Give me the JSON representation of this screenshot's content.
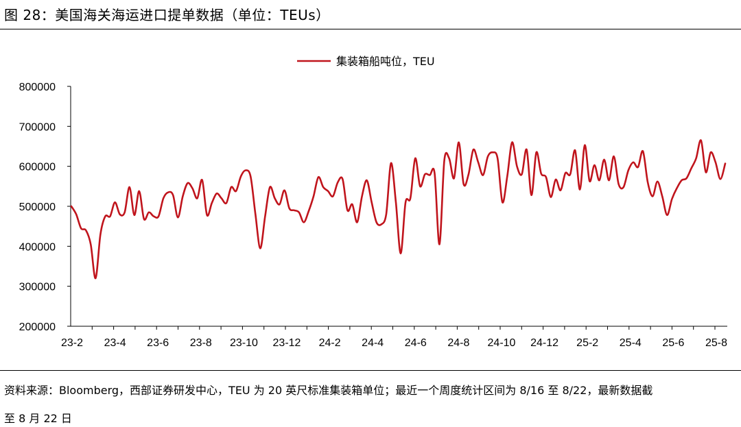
{
  "figure": {
    "title": "图 28：美国海关海运进口提单数据（单位：TEUs）",
    "source_line1": "资料来源：Bloomberg，西部证券研发中心，TEU 为 20 英尺标准集装箱单位；最近一个周度统计区间为 8/16 至 8/22，最新数据截",
    "source_line2": "至 8 月 22 日"
  },
  "colors": {
    "series": "#c0141c",
    "axis": "#000000"
  },
  "chart_data": {
    "type": "line",
    "legend": {
      "label": "集装箱船吨位，TEU",
      "placement": "top-center"
    },
    "ylim": [
      200000,
      800000
    ],
    "yticks": [
      "200000",
      "300000",
      "400000",
      "500000",
      "600000",
      "700000",
      "800000"
    ],
    "xticks": [
      "23-2",
      "23-4",
      "23-6",
      "23-8",
      "23-10",
      "23-12",
      "24-2",
      "24-4",
      "24-6",
      "24-8",
      "24-10",
      "24-12",
      "25-2",
      "25-4",
      "25-6",
      "25-8"
    ],
    "grid": false,
    "series": [
      {
        "name": "集装箱船吨位，TEU",
        "values": [
          500000,
          480000,
          445000,
          440000,
          405000,
          320000,
          430000,
          475000,
          475000,
          510000,
          480000,
          485000,
          548000,
          478000,
          538000,
          468000,
          485000,
          475000,
          475000,
          520000,
          535000,
          528000,
          472000,
          525000,
          558000,
          545000,
          520000,
          566000,
          478000,
          508000,
          532000,
          520000,
          508000,
          548000,
          538000,
          575000,
          590000,
          575000,
          480000,
          395000,
          475000,
          548000,
          520000,
          505000,
          540000,
          495000,
          490000,
          485000,
          460000,
          488000,
          525000,
          573000,
          548000,
          538000,
          525000,
          560000,
          568000,
          490000,
          505000,
          460000,
          525000,
          565000,
          510000,
          460000,
          455000,
          480000,
          608000,
          510000,
          382000,
          510000,
          520000,
          620000,
          550000,
          580000,
          578000,
          583000,
          405000,
          615000,
          620000,
          570000,
          660000,
          555000,
          580000,
          642000,
          610000,
          578000,
          625000,
          635000,
          620000,
          510000,
          575000,
          660000,
          600000,
          580000,
          642000,
          528000,
          635000,
          582000,
          573000,
          523000,
          567000,
          540000,
          583000,
          580000,
          640000,
          542000,
          653000,
          563000,
          603000,
          565000,
          617000,
          565000,
          625000,
          555000,
          548000,
          590000,
          610000,
          598000,
          638000,
          560000,
          525000,
          562000,
          525000,
          478000,
          518000,
          545000,
          565000,
          570000,
          595000,
          620000,
          665000,
          585000,
          635000,
          610000,
          568000,
          607000
        ]
      }
    ]
  }
}
